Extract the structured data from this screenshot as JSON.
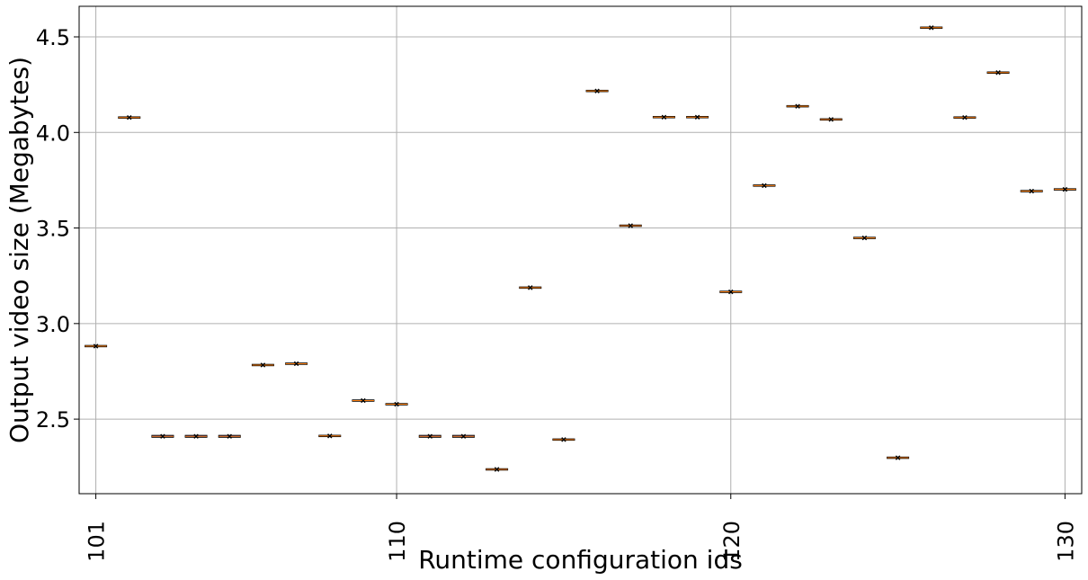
{
  "chart_data": {
    "type": "box",
    "title": "",
    "xlabel": "Runtime configuration ids",
    "ylabel": "Output video size (Megabytes)",
    "x_tick_labels": [
      "101",
      "110",
      "120",
      "130"
    ],
    "y_tick_labels": [
      "2.5",
      "3.0",
      "3.5",
      "4.0",
      "4.5"
    ],
    "xlim": [
      100.5,
      130.5
    ],
    "ylim": [
      2.11,
      4.66
    ],
    "grid": true,
    "legend": false,
    "colors": {
      "box_edge": "#000000",
      "box_fill_highlight": "#5a5af2",
      "median": "#ff7f0e",
      "mean_marker": "#000000",
      "grid": "#b0b0b0"
    },
    "boxes": [
      {
        "id": 101,
        "value": 2.882,
        "spread": 0.004
      },
      {
        "id": 102,
        "value": 4.078,
        "spread": 0.003
      },
      {
        "id": 103,
        "value": 2.41,
        "spread": 0.01,
        "highlight": true
      },
      {
        "id": 104,
        "value": 2.41,
        "spread": 0.01,
        "highlight": true
      },
      {
        "id": 105,
        "value": 2.41,
        "spread": 0.01,
        "highlight": true
      },
      {
        "id": 106,
        "value": 2.783,
        "spread": 0.006
      },
      {
        "id": 107,
        "value": 2.79,
        "spread": 0.006
      },
      {
        "id": 108,
        "value": 2.412,
        "spread": 0.006
      },
      {
        "id": 109,
        "value": 2.597,
        "spread": 0.006
      },
      {
        "id": 110,
        "value": 2.578,
        "spread": 0.004
      },
      {
        "id": 111,
        "value": 2.41,
        "spread": 0.01,
        "highlight": true
      },
      {
        "id": 112,
        "value": 2.41,
        "spread": 0.01,
        "highlight": true
      },
      {
        "id": 113,
        "value": 2.237,
        "spread": 0.004
      },
      {
        "id": 114,
        "value": 3.188,
        "spread": 0.004
      },
      {
        "id": 115,
        "value": 2.393,
        "spread": 0.006
      },
      {
        "id": 116,
        "value": 4.217,
        "spread": 0.006
      },
      {
        "id": 117,
        "value": 3.512,
        "spread": 0.006
      },
      {
        "id": 118,
        "value": 4.08,
        "spread": 0.004
      },
      {
        "id": 119,
        "value": 4.08,
        "spread": 0.004
      },
      {
        "id": 120,
        "value": 3.166,
        "spread": 0.004
      },
      {
        "id": 121,
        "value": 3.722,
        "spread": 0.004
      },
      {
        "id": 122,
        "value": 4.137,
        "spread": 0.006
      },
      {
        "id": 123,
        "value": 4.068,
        "spread": 0.006
      },
      {
        "id": 124,
        "value": 3.448,
        "spread": 0.004
      },
      {
        "id": 125,
        "value": 2.298,
        "spread": 0.004
      },
      {
        "id": 126,
        "value": 4.548,
        "spread": 0.004
      },
      {
        "id": 127,
        "value": 4.078,
        "spread": 0.004
      },
      {
        "id": 128,
        "value": 4.313,
        "spread": 0.004
      },
      {
        "id": 129,
        "value": 3.693,
        "spread": 0.004
      },
      {
        "id": 130,
        "value": 3.702,
        "spread": 0.004
      }
    ]
  }
}
